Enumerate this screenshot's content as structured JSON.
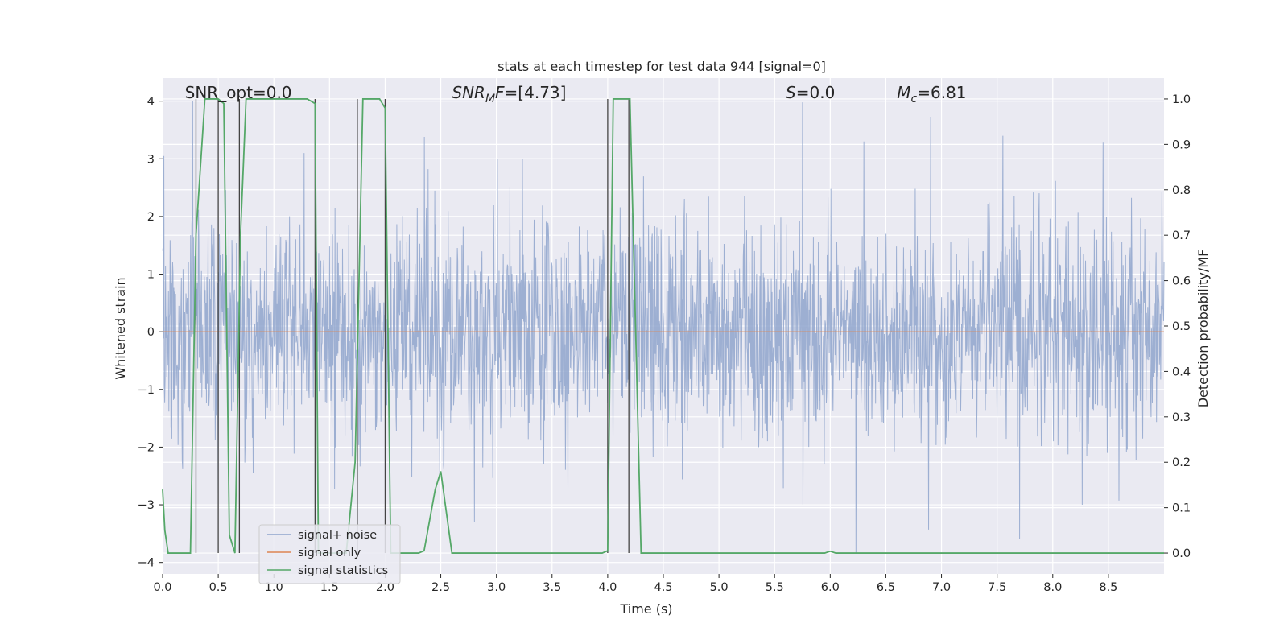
{
  "chart_data": {
    "type": "line",
    "title": "stats at each timestep for test data 944 [signal=0]",
    "xlabel": "Time (s)",
    "ylabel": "Whitened strain",
    "y2label": "Detection probability/MF",
    "xlim": [
      0,
      9.0
    ],
    "ylim": [
      -4.2,
      4.4
    ],
    "y2lim": [
      -0.046,
      1.046
    ],
    "xticks": [
      0.0,
      0.5,
      1.0,
      1.5,
      2.0,
      2.5,
      3.0,
      3.5,
      4.0,
      4.5,
      5.0,
      5.5,
      6.0,
      6.5,
      7.0,
      7.5,
      8.0,
      8.5
    ],
    "xtick_labels": [
      "0.0",
      "0.5",
      "1.0",
      "1.5",
      "2.0",
      "2.5",
      "3.0",
      "3.5",
      "4.0",
      "4.5",
      "5.0",
      "5.5",
      "6.0",
      "6.5",
      "7.0",
      "7.5",
      "8.0",
      "8.5"
    ],
    "yticks": [
      -4,
      -3,
      -2,
      -1,
      0,
      1,
      2,
      3,
      4
    ],
    "ytick_labels": [
      "−4",
      "−3",
      "−2",
      "−1",
      "0",
      "1",
      "2",
      "3",
      "4"
    ],
    "y2ticks": [
      0.0,
      0.1,
      0.2,
      0.3,
      0.4,
      0.5,
      0.6,
      0.7,
      0.8,
      0.9,
      1.0
    ],
    "y2tick_labels": [
      "0.0",
      "0.1",
      "0.2",
      "0.3",
      "0.4",
      "0.5",
      "0.6",
      "0.7",
      "0.8",
      "0.9",
      "1.0"
    ],
    "grid": true,
    "legend_position": "lower-left",
    "series": [
      {
        "name": "signal+ noise",
        "color": "#8fa4cc",
        "axis": "left",
        "kind": "noisy strain sampled at high rate, amplitude mostly within ±1.8, peaks up to ±4",
        "peaks": [
          {
            "x": 0.01,
            "y": 3.05
          },
          {
            "x": 0.27,
            "y": 4.0
          },
          {
            "x": 1.27,
            "y": 3.1
          },
          {
            "x": 2.35,
            "y": 3.38
          },
          {
            "x": 5.75,
            "y": 3.98
          },
          {
            "x": 6.3,
            "y": 3.3
          },
          {
            "x": 6.9,
            "y": 3.73
          },
          {
            "x": 7.55,
            "y": 3.4
          },
          {
            "x": 8.45,
            "y": 3.28
          },
          {
            "x": 0.5,
            "y": -2.8
          },
          {
            "x": 2.8,
            "y": -3.3
          },
          {
            "x": 6.23,
            "y": -3.85
          },
          {
            "x": 6.88,
            "y": -3.43
          },
          {
            "x": 7.7,
            "y": -3.6
          }
        ]
      },
      {
        "name": "signal only",
        "color": "#dd8452",
        "axis": "left",
        "x": [
          0.0,
          9.0
        ],
        "y": [
          0.0,
          0.0
        ]
      },
      {
        "name": "signal statistics",
        "color": "#55a868",
        "axis": "right",
        "x": [
          0.0,
          0.02,
          0.05,
          0.25,
          0.3,
          0.38,
          0.5,
          0.55,
          0.6,
          0.65,
          0.7,
          0.75,
          0.8,
          1.3,
          1.37,
          1.4,
          1.45,
          1.65,
          1.73,
          1.8,
          1.95,
          2.0,
          2.05,
          2.1,
          2.3,
          2.35,
          2.45,
          2.5,
          2.6,
          2.65,
          3.95,
          4.0,
          4.05,
          4.2,
          4.25,
          4.3,
          5.95,
          6.0,
          6.05,
          9.0
        ],
        "y": [
          0.14,
          0.05,
          0.0,
          0.0,
          0.7,
          1.0,
          1.0,
          0.99,
          0.04,
          0.0,
          0.7,
          1.0,
          1.0,
          1.0,
          0.99,
          0.0,
          0.0,
          0.0,
          0.2,
          1.0,
          1.0,
          0.98,
          0.0,
          0.0,
          0.0,
          0.005,
          0.14,
          0.18,
          0.0,
          0.0,
          0.0,
          0.005,
          1.0,
          1.0,
          0.5,
          0.0,
          0.0,
          0.004,
          0.0,
          0.0
        ]
      }
    ],
    "vlines": [
      0.3,
      0.5,
      0.69,
      1.37,
      1.75,
      2.0,
      4.0,
      4.19
    ],
    "annotations": [
      {
        "x": 0.2,
        "y": 4.05,
        "text": "SNR_opt=0.0",
        "italic": false
      },
      {
        "x": 2.6,
        "y": 4.05,
        "text": "SNRMF=[4.73]",
        "math_base": "SNR",
        "math_sub": "M",
        "math_rest": "F=[4.73]",
        "italic": true
      },
      {
        "x": 5.6,
        "y": 4.05,
        "text": "S=0.0",
        "math_base": "S",
        "math_sub": "",
        "math_rest": "=0.0",
        "italic": true
      },
      {
        "x": 6.6,
        "y": 4.05,
        "text": "Mc=6.81",
        "math_base": "M",
        "math_sub": "c",
        "math_rest": "=6.81",
        "italic": true
      }
    ]
  }
}
